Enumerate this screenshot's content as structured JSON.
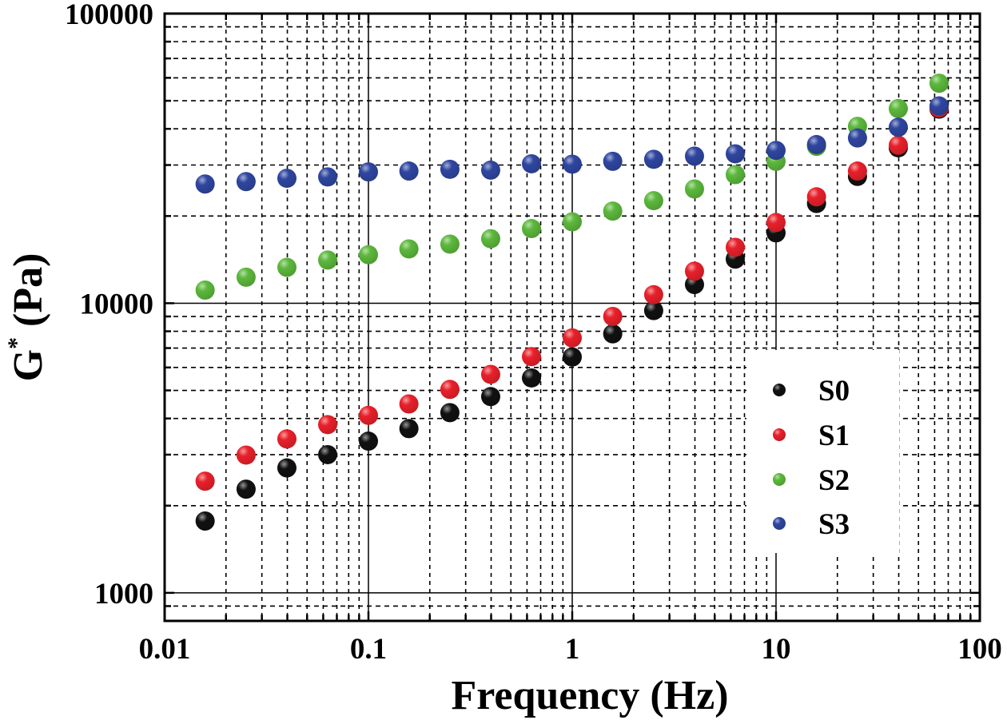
{
  "chart_data": {
    "type": "scatter",
    "title": "",
    "xlabel": "Frequency (Hz)",
    "ylabel": "G",
    "ylabel_superscript": "*",
    "ylabel_unit": " (Pa)",
    "xscale": "log",
    "yscale": "log",
    "xlim": [
      0.01,
      100
    ],
    "ylim": [
      800,
      100000
    ],
    "grid": true,
    "x_ticks": [
      0.01,
      0.1,
      1,
      10,
      100
    ],
    "x_tick_labels": [
      "0.01",
      "0.1",
      "1",
      "10",
      "100"
    ],
    "y_ticks": [
      1000,
      10000,
      100000
    ],
    "y_tick_labels": [
      "1000",
      "10000",
      "100000"
    ],
    "legend_position": "lower-right",
    "x": [
      0.0158,
      0.0251,
      0.0398,
      0.0631,
      0.1,
      0.158,
      0.251,
      0.398,
      0.631,
      1,
      1.58,
      2.51,
      3.98,
      6.31,
      10,
      15.8,
      25.1,
      39.8,
      63.1
    ],
    "series": [
      {
        "name": "S0",
        "color": "#111111",
        "values": [
          1770,
          2280,
          2700,
          3000,
          3340,
          3690,
          4190,
          4760,
          5520,
          6520,
          7840,
          9430,
          11600,
          14200,
          17500,
          22100,
          27400,
          34400,
          46800
        ]
      },
      {
        "name": "S1",
        "color": "#e8202a",
        "values": [
          2430,
          2990,
          3400,
          3810,
          4100,
          4490,
          5040,
          5680,
          6540,
          7590,
          9000,
          10700,
          12900,
          15600,
          19000,
          23300,
          28600,
          35100,
          47200
        ]
      },
      {
        "name": "S2",
        "color": "#5cb83c",
        "values": [
          11100,
          12300,
          13300,
          14100,
          14700,
          15400,
          16000,
          16700,
          18100,
          19100,
          20800,
          22600,
          24800,
          27800,
          30900,
          34800,
          40800,
          47000,
          57500
        ]
      },
      {
        "name": "S3",
        "color": "#2f46a0",
        "values": [
          25800,
          26300,
          27000,
          27300,
          28400,
          28600,
          29000,
          28800,
          30300,
          30200,
          30900,
          31400,
          32200,
          32800,
          33700,
          35300,
          37200,
          40500,
          48000
        ]
      }
    ]
  }
}
